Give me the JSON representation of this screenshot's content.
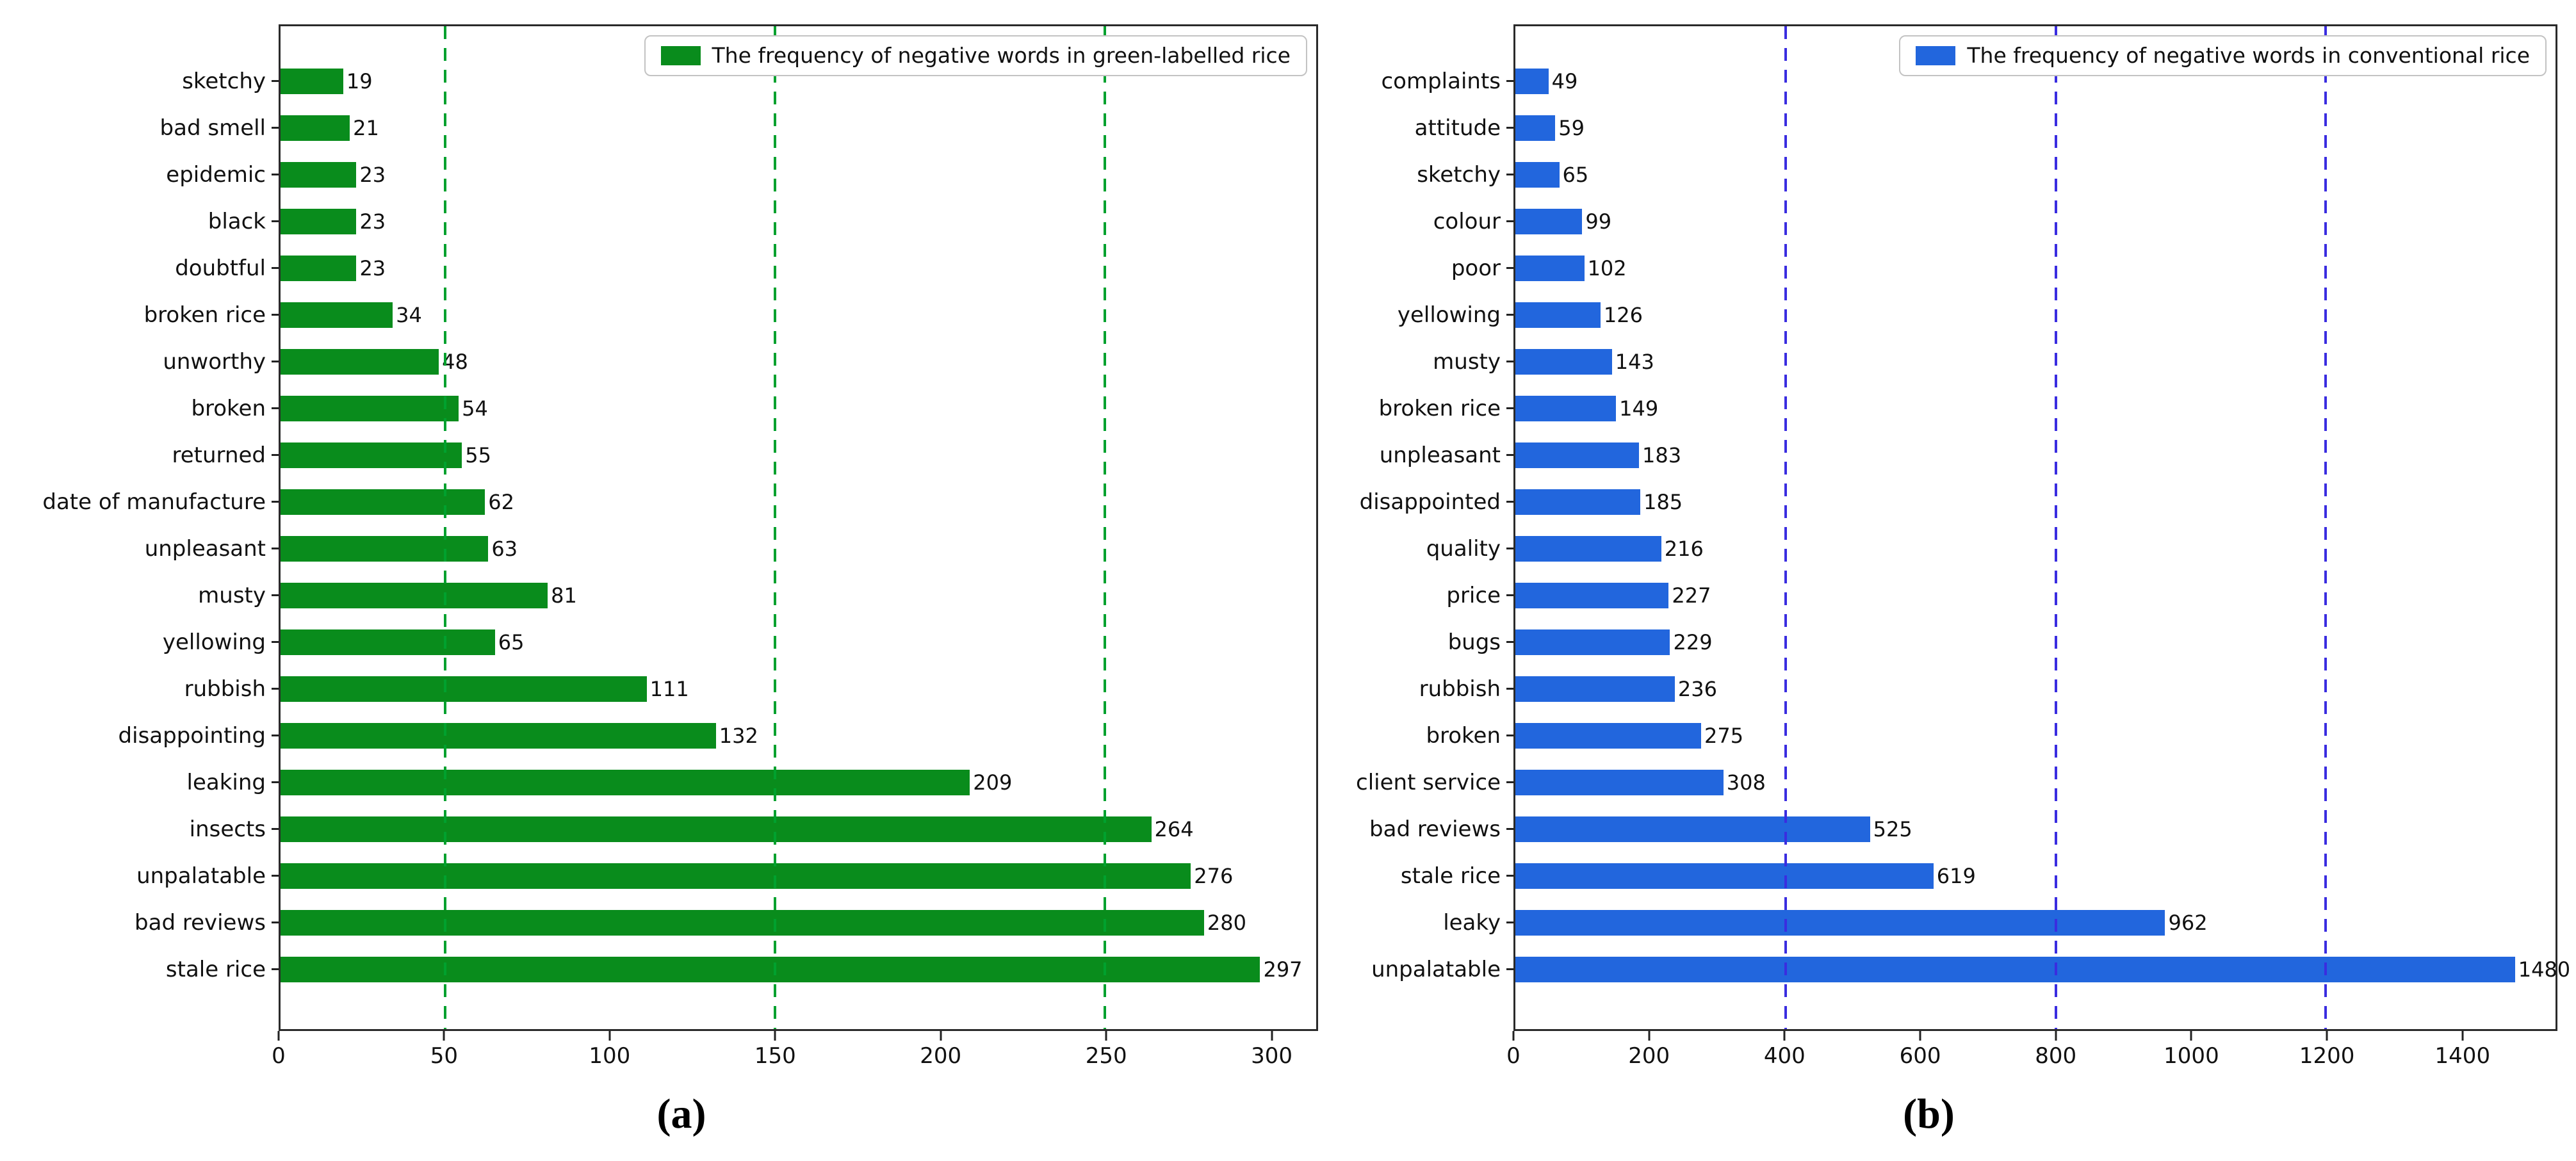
{
  "chart_data": [
    {
      "type": "bar",
      "orientation": "horizontal",
      "legend": "The frequency of negative words in green-labelled rice",
      "caption": "(a)",
      "bar_color": "#098c1c",
      "gridline_color": "#00a12e",
      "categories": [
        "sketchy",
        "bad smell",
        "epidemic",
        "black",
        "doubtful",
        "broken rice",
        "unworthy",
        "broken",
        "returned",
        "date of manufacture",
        "unpleasant",
        "musty",
        "yellowing",
        "rubbish",
        "disappointing",
        "leaking",
        "insects",
        "unpalatable",
        "bad reviews",
        "stale rice"
      ],
      "values": [
        19,
        21,
        23,
        23,
        23,
        34,
        48,
        54,
        55,
        62,
        63,
        81,
        65,
        111,
        132,
        209,
        264,
        276,
        280,
        297
      ],
      "xticks": [
        0,
        50,
        100,
        150,
        200,
        250,
        300
      ],
      "dashed_gridlines": [
        50,
        150,
        250
      ],
      "xlim": [
        0,
        314
      ],
      "grid": "dashed-vertical",
      "legend_position": "upper-right"
    },
    {
      "type": "bar",
      "orientation": "horizontal",
      "legend": "The frequency of negative words in conventional rice",
      "caption": "(b)",
      "bar_color": "#2266dd",
      "gridline_color": "#3a2de0",
      "categories": [
        "complaints",
        "attitude",
        "sketchy",
        "colour",
        "poor",
        "yellowing",
        "musty",
        "broken rice",
        "unpleasant",
        "disappointed",
        "quality",
        "price",
        "bugs",
        "rubbish",
        "broken",
        "client service",
        "bad reviews",
        "stale rice",
        "leaky",
        "unpalatable"
      ],
      "values": [
        49,
        59,
        65,
        99,
        102,
        126,
        143,
        149,
        183,
        185,
        216,
        227,
        229,
        236,
        275,
        308,
        525,
        619,
        962,
        1480
      ],
      "xticks": [
        0,
        200,
        400,
        600,
        800,
        1000,
        1200,
        1400
      ],
      "dashed_gridlines": [
        400,
        800,
        1200
      ],
      "xlim": [
        0,
        1540
      ],
      "grid": "dashed-vertical",
      "legend_position": "upper-right"
    }
  ]
}
